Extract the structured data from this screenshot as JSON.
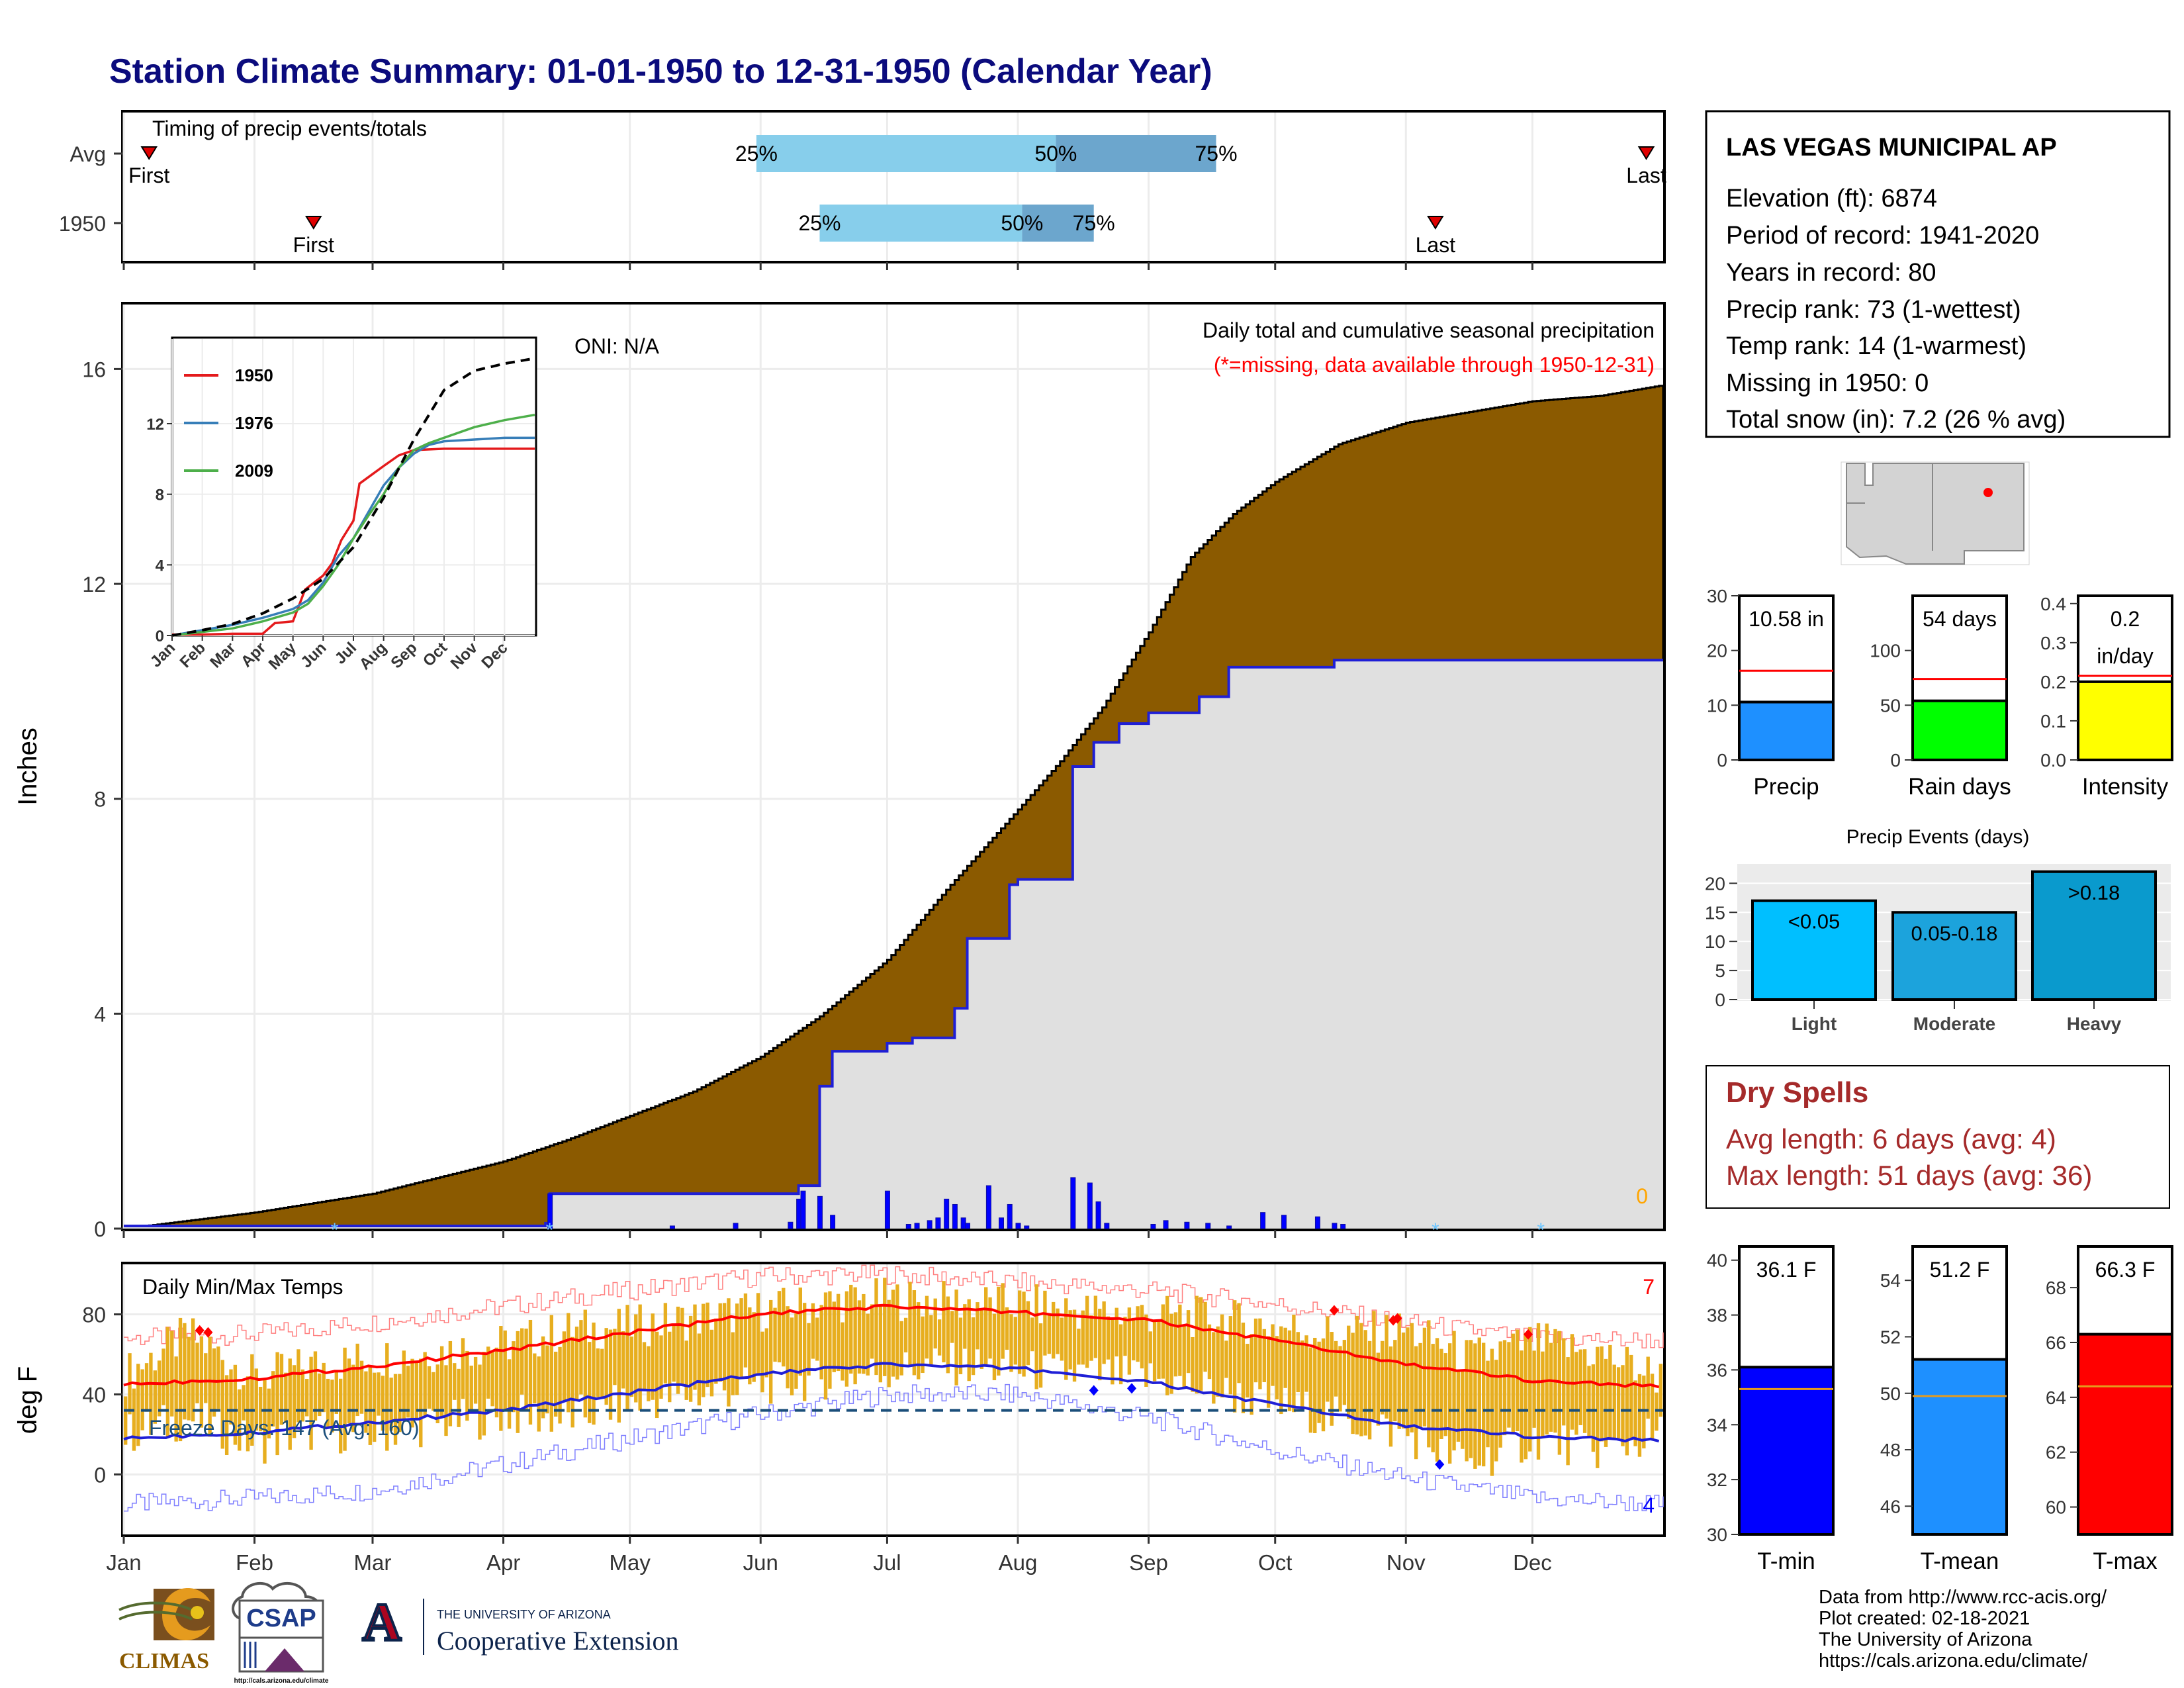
{
  "title": "Station Climate Summary: 01-01-1950 to 12-31-1950 (Calendar Year)",
  "colors": {
    "title": "#0b0b7d",
    "brown": "#8b5a00",
    "cum_gray": "#e0e0e0",
    "blue_line": "#1f1fd6",
    "red": "#ff0000",
    "gold": "#e7ae1f",
    "freeze_line": "#1a4e7a",
    "q_light": "#87ceeb",
    "q_dark": "#6ca6cd",
    "precip_bar": "#1e90ff",
    "raindays_bar": "#00ff00",
    "intensity_bar": "#ffff00",
    "evt_light": "#00bfff",
    "evt_moderate": "#1ca3dc",
    "evt_heavy": "#0a9acd",
    "tmin_bar": "#0000ff",
    "tmean_bar": "#1e90ff",
    "tmax_bar": "#ff0000",
    "dry_spell": "#a52a2a"
  },
  "chart_data": [
    {
      "id": "timing",
      "type": "bar",
      "title": "Timing of precip events/totals",
      "rows": [
        {
          "label": "Avg",
          "first_day": 6,
          "q25_day": 150,
          "q50_day": 221,
          "q75_day": 259,
          "last_day": 361,
          "first_label": "First",
          "last_label": "Last"
        },
        {
          "label": "1950",
          "first_day": 45,
          "q25_day": 165,
          "q50_day": 213,
          "q75_day": 230,
          "last_day": 311,
          "first_label": "First",
          "last_label": "Last"
        }
      ],
      "quantile_labels": [
        "25%",
        "50%",
        "75%"
      ]
    },
    {
      "id": "precip",
      "type": "area",
      "title": "Daily total and cumulative seasonal precipitation",
      "subtitle": "(*=missing, data available through 1950-12-31)",
      "oni_label": "ONI: N/A",
      "ylabel": "Inches",
      "yticks": [
        0,
        4,
        8,
        12,
        16
      ],
      "ylim": [
        0,
        17.2
      ],
      "missing_count_label": "0",
      "avg_cumulative": {
        "day": [
          0,
          31,
          59,
          90,
          105,
          120,
          135,
          151,
          165,
          181,
          196,
          212,
          222,
          232,
          243,
          253,
          263,
          273,
          288,
          304,
          319,
          334,
          350,
          365
        ],
        "inches": [
          0,
          0.3,
          0.65,
          1.25,
          1.65,
          2.1,
          2.55,
          3.2,
          3.95,
          5.0,
          6.4,
          7.8,
          8.7,
          9.7,
          11.1,
          12.5,
          13.3,
          13.9,
          14.6,
          15.0,
          15.2,
          15.4,
          15.5,
          15.7
        ]
      },
      "cumulative_1950": {
        "day": [
          0,
          100,
          101,
          160,
          165,
          168,
          181,
          187,
          197,
          200,
          210,
          212,
          225,
          230,
          236,
          243,
          255,
          262,
          287,
          365
        ],
        "inches": [
          0.05,
          0.1,
          0.65,
          0.8,
          2.65,
          3.3,
          3.45,
          3.55,
          4.1,
          5.4,
          6.4,
          6.5,
          8.6,
          9.05,
          9.4,
          9.6,
          9.9,
          10.45,
          10.58,
          10.58
        ]
      },
      "daily_1950": {
        "day": [
          101,
          130,
          145,
          158,
          160,
          161,
          165,
          168,
          181,
          186,
          188,
          191,
          193,
          195,
          197,
          199,
          200,
          205,
          208,
          210,
          212,
          214,
          225,
          229,
          231,
          233,
          244,
          247,
          252,
          257,
          262,
          270,
          275,
          283,
          287,
          289
        ],
        "inches": [
          0.65,
          0.05,
          0.1,
          0.12,
          0.55,
          0.7,
          0.6,
          0.25,
          0.7,
          0.08,
          0.1,
          0.15,
          0.2,
          0.55,
          0.45,
          0.2,
          0.1,
          0.8,
          0.2,
          0.45,
          0.1,
          0.05,
          0.95,
          0.85,
          0.5,
          0.1,
          0.08,
          0.15,
          0.12,
          0.1,
          0.05,
          0.3,
          0.25,
          0.22,
          0.1,
          0.08
        ]
      },
      "snow_markers_day": [
        50,
        101,
        311,
        336
      ]
    },
    {
      "id": "normals_inset",
      "type": "line",
      "yticks": [
        0,
        4,
        8,
        12
      ],
      "xticks": [
        "Jan",
        "Feb",
        "Mar",
        "Apr",
        "May",
        "Jun",
        "Jul",
        "Aug",
        "Sep",
        "Oct",
        "Nov",
        "Dec"
      ],
      "series": [
        {
          "name": "1950",
          "color": "#e41a1c",
          "month": [
            0,
            1,
            2,
            3,
            3.4,
            4,
            4.4,
            5,
            5.3,
            5.6,
            6,
            6.2,
            6.6,
            7,
            7.5,
            8,
            9,
            10,
            12
          ],
          "inches": [
            0.05,
            0.05,
            0.1,
            0.1,
            0.7,
            0.8,
            2.6,
            3.4,
            4.1,
            5.4,
            6.5,
            8.6,
            9.1,
            9.6,
            10.2,
            10.5,
            10.58,
            10.58,
            10.58
          ]
        },
        {
          "name": "1976",
          "color": "#377eb8",
          "month": [
            0,
            1,
            2,
            3,
            4,
            4.5,
            5,
            5.5,
            6,
            6.5,
            7,
            7.5,
            8,
            8.5,
            9,
            10,
            11,
            12
          ],
          "inches": [
            0,
            0.3,
            0.6,
            1.0,
            1.5,
            2.0,
            3.0,
            4.5,
            5.5,
            7.0,
            8.5,
            9.5,
            10.3,
            10.8,
            11.0,
            11.1,
            11.2,
            11.2
          ]
        },
        {
          "name": "2009",
          "color": "#4daf4a",
          "month": [
            0,
            1,
            2,
            3,
            4,
            4.5,
            5,
            5.5,
            6,
            6.5,
            7,
            7.5,
            8,
            8.5,
            9,
            10,
            11,
            12
          ],
          "inches": [
            0,
            0.2,
            0.4,
            0.8,
            1.3,
            1.8,
            2.8,
            4.0,
            5.5,
            6.8,
            8.0,
            9.5,
            10.5,
            10.9,
            11.2,
            11.8,
            12.2,
            12.5
          ]
        },
        {
          "name": "avg",
          "color": "#000000",
          "dashed": true,
          "month": [
            0,
            1,
            2,
            3,
            4,
            5,
            6,
            7,
            8,
            9,
            10,
            11,
            12
          ],
          "inches": [
            0,
            0.3,
            0.65,
            1.25,
            2.1,
            3.2,
            5.0,
            7.8,
            11.1,
            13.9,
            15.0,
            15.4,
            15.7
          ]
        }
      ],
      "legend": [
        "1950",
        "1976",
        "2009"
      ]
    },
    {
      "id": "temps",
      "type": "line",
      "title": "Daily Min/Max Temps",
      "ylabel": "deg F",
      "yticks": [
        0,
        40,
        80
      ],
      "ylim": [
        -30,
        105
      ],
      "xticks": [
        "Jan",
        "Feb",
        "Mar",
        "Apr",
        "May",
        "Jun",
        "Jul",
        "Aug",
        "Sep",
        "Oct",
        "Nov",
        "Dec"
      ],
      "freeze_label": "Freeze Days: 147 (Avg: 160)",
      "freeze_temp": 32,
      "high_records_count_label": "7",
      "low_records_count_label": "4",
      "normal_max": {
        "day": [
          0,
          31,
          59,
          90,
          120,
          151,
          181,
          212,
          243,
          273,
          304,
          334,
          365
        ],
        "temp": [
          45,
          48,
          54,
          62,
          71,
          80,
          84,
          81,
          77,
          67,
          55,
          47,
          44
        ]
      },
      "normal_min": {
        "day": [
          0,
          31,
          59,
          90,
          120,
          151,
          181,
          212,
          243,
          273,
          304,
          334,
          365
        ],
        "temp": [
          18,
          21,
          26,
          32,
          41,
          50,
          55,
          53,
          46,
          35,
          24,
          19,
          17
        ]
      },
      "record_max": {
        "day": [
          0,
          31,
          59,
          90,
          120,
          151,
          181,
          212,
          243,
          273,
          304,
          334,
          365
        ],
        "temp": [
          68,
          70,
          76,
          84,
          92,
          99,
          100,
          96,
          92,
          85,
          76,
          68,
          67
        ]
      },
      "record_min": {
        "day": [
          0,
          31,
          59,
          90,
          120,
          151,
          181,
          212,
          243,
          273,
          304,
          334,
          365
        ],
        "temp": [
          -15,
          -12,
          -8,
          5,
          18,
          30,
          40,
          40,
          28,
          12,
          -2,
          -12,
          -15
        ]
      },
      "daily_max_approx": {
        "day": [
          0,
          15,
          31,
          45,
          59,
          75,
          90,
          105,
          120,
          135,
          151,
          166,
          181,
          196,
          212,
          227,
          243,
          258,
          273,
          288,
          304,
          319,
          334,
          350,
          365
        ],
        "temp": [
          50,
          70,
          48,
          55,
          58,
          62,
          65,
          72,
          74,
          78,
          82,
          86,
          88,
          86,
          85,
          82,
          80,
          78,
          74,
          70,
          72,
          58,
          66,
          60,
          48
        ]
      },
      "daily_min_approx": {
        "day": [
          0,
          15,
          31,
          45,
          59,
          75,
          90,
          105,
          120,
          135,
          151,
          166,
          181,
          196,
          212,
          227,
          243,
          258,
          273,
          288,
          304,
          319,
          334,
          350,
          365
        ],
        "temp": [
          20,
          28,
          15,
          22,
          20,
          26,
          30,
          28,
          36,
          40,
          45,
          48,
          52,
          55,
          52,
          50,
          48,
          42,
          35,
          28,
          20,
          5,
          18,
          12,
          20
        ]
      },
      "record_high_markers": {
        "day": [
          18,
          20,
          287,
          301,
          302,
          333
        ],
        "temp": [
          72,
          71,
          82,
          77,
          78,
          70
        ]
      },
      "record_low_markers": {
        "day": [
          230,
          239,
          312
        ],
        "temp": [
          42,
          43,
          5
        ]
      }
    },
    {
      "id": "precip_gauge",
      "type": "bar",
      "category": "Precip",
      "value": 10.58,
      "normal": 16.3,
      "value_label": "10.58 in",
      "ylim": [
        0,
        30
      ],
      "yticks": [
        0,
        10,
        20,
        30
      ]
    },
    {
      "id": "raindays_gauge",
      "type": "bar",
      "category": "Rain days",
      "value": 54,
      "normal": 74,
      "value_label": "54 days",
      "ylim": [
        0,
        150
      ],
      "yticks": [
        0,
        50,
        100
      ]
    },
    {
      "id": "intensity_gauge",
      "type": "bar",
      "category": "Intensity",
      "value": 0.2,
      "normal": 0.215,
      "value_label_1": "0.2",
      "value_label_2": "in/day",
      "ylim": [
        0,
        0.42
      ],
      "yticks": [
        "0.0",
        "0.1",
        "0.2",
        "0.3",
        "0.4"
      ]
    },
    {
      "id": "precip_events",
      "type": "bar",
      "title": "Precip Events (days)",
      "categories": [
        "Light",
        "Moderate",
        "Heavy"
      ],
      "bar_labels": [
        "<0.05",
        "0.05-0.18",
        ">0.18"
      ],
      "values": [
        17,
        15,
        22
      ],
      "ylim": [
        0,
        23
      ],
      "yticks": [
        0,
        5,
        10,
        15,
        20
      ]
    },
    {
      "id": "tmin_gauge",
      "type": "bar",
      "category": "T-min",
      "value": 36.1,
      "normal": 35.3,
      "value_label": "36.1 F",
      "ylim": [
        30,
        40.5
      ],
      "yticks": [
        30,
        32,
        34,
        36,
        38,
        40
      ]
    },
    {
      "id": "tmean_gauge",
      "type": "bar",
      "category": "T-mean",
      "value": 51.2,
      "normal": 49.9,
      "value_label": "51.2 F",
      "ylim": [
        45,
        55.2
      ],
      "yticks": [
        46,
        48,
        50,
        52,
        54
      ]
    },
    {
      "id": "tmax_gauge",
      "type": "bar",
      "category": "T-max",
      "value": 66.3,
      "normal": 64.4,
      "value_label": "66.3 F",
      "ylim": [
        59,
        69.5
      ],
      "yticks": [
        60,
        62,
        64,
        66,
        68
      ]
    }
  ],
  "station": {
    "name": "LAS VEGAS MUNICIPAL AP",
    "lines": [
      "Elevation (ft): 6874",
      "Period of record: 1941-2020",
      "Years in record: 80",
      "Precip rank: 73 (1-wettest)",
      "Temp rank: 14 (1-warmest)",
      "Missing in 1950: 0",
      "Total snow (in): 7.2 (26 % avg)"
    ]
  },
  "dry_spells": {
    "title": "Dry Spells",
    "avg": "Avg length: 6 days (avg: 4)",
    "max": "Max length: 51 days (avg: 36)"
  },
  "footer": {
    "lines": [
      "Data from http://www.rcc-acis.org/",
      "Plot created: 02-18-2021",
      "The University of Arizona",
      "https://cals.arizona.edu/climate/"
    ]
  },
  "logos": {
    "climas": "CLIMAS",
    "csap": "CSAP",
    "csap_url": "http://cals.arizona.edu/climate",
    "ua_small": "THE UNIVERSITY OF ARIZONA",
    "ua_big": "Cooperative Extension"
  }
}
